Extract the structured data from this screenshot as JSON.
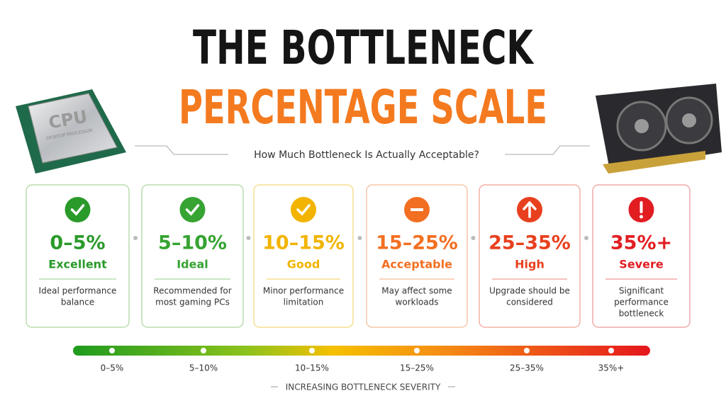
{
  "header": {
    "title_line1": "THE BOTTLENECK",
    "title_line2": "PERCENTAGE SCALE",
    "subtitle": "How Much Bottleneck Is Actually Acceptable?"
  },
  "cpu_chip": {
    "label": "CPU",
    "sublabel": "DESKTOP PROCESSOR"
  },
  "cards": [
    {
      "range": "0–5%",
      "label": "Excellent",
      "description": [
        "Ideal performance",
        "balance"
      ]
    },
    {
      "range": "5–10%",
      "label": "Ideal",
      "description": [
        "Recommended for",
        "most gaming PCs"
      ]
    },
    {
      "range": "10–15%",
      "label": "Good",
      "description": [
        "Minor performance",
        "limitation"
      ]
    },
    {
      "range": "15–25%",
      "label": "Acceptable",
      "description": [
        "May affect some",
        "workloads"
      ]
    },
    {
      "range": "25–35%",
      "label": "High",
      "description": [
        "Upgrade should be",
        "considered"
      ]
    },
    {
      "range": "35%+",
      "label": "Severe",
      "description": [
        "Significant",
        "performance",
        "bottleneck"
      ]
    }
  ],
  "scale": {
    "labels": [
      "0–5%",
      "5–10%",
      "10–15%",
      "15–25%",
      "25–35%",
      "35%+"
    ],
    "caption": "INCREASING BOTTLENECK SEVERITY"
  }
}
